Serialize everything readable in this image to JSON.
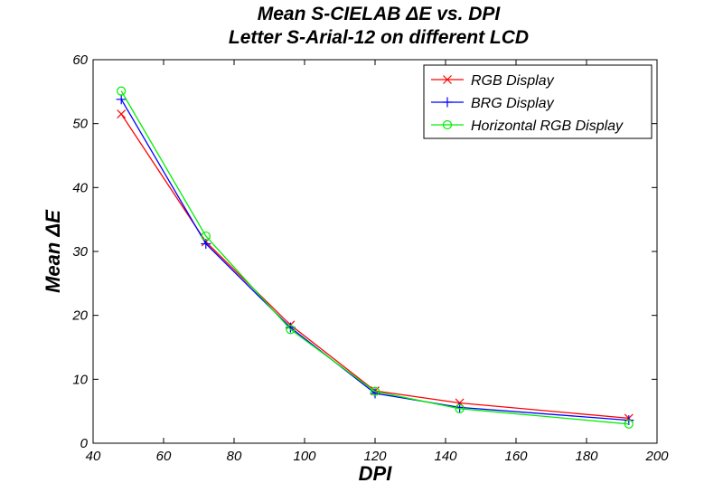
{
  "chart_data": {
    "type": "line",
    "title": "Mean S-CIELAB ΔE vs. DPI",
    "subtitle": "Letter S-Arial-12 on different LCD",
    "xlabel": "DPI",
    "ylabel": "Mean ΔE",
    "xlim": [
      40,
      200
    ],
    "ylim": [
      0,
      60
    ],
    "xticks": [
      40,
      60,
      80,
      100,
      120,
      140,
      160,
      180,
      200
    ],
    "yticks": [
      0,
      10,
      20,
      30,
      40,
      50,
      60
    ],
    "grid": false,
    "legend_position": "top-right",
    "x": [
      48,
      72,
      96,
      120,
      144,
      192
    ],
    "series": [
      {
        "name": "RGB Display",
        "color": "#ff0000",
        "marker": "x",
        "values": [
          51.5,
          31.5,
          18.5,
          8.2,
          6.3,
          3.9
        ]
      },
      {
        "name": "BRG Display",
        "color": "#0000ff",
        "marker": "+",
        "values": [
          53.8,
          31.2,
          18.1,
          7.8,
          5.6,
          3.6
        ]
      },
      {
        "name": "Horizontal RGB Display",
        "color": "#00ee00",
        "marker": "o",
        "values": [
          55.1,
          32.4,
          17.8,
          8.1,
          5.4,
          3.0
        ]
      }
    ]
  }
}
